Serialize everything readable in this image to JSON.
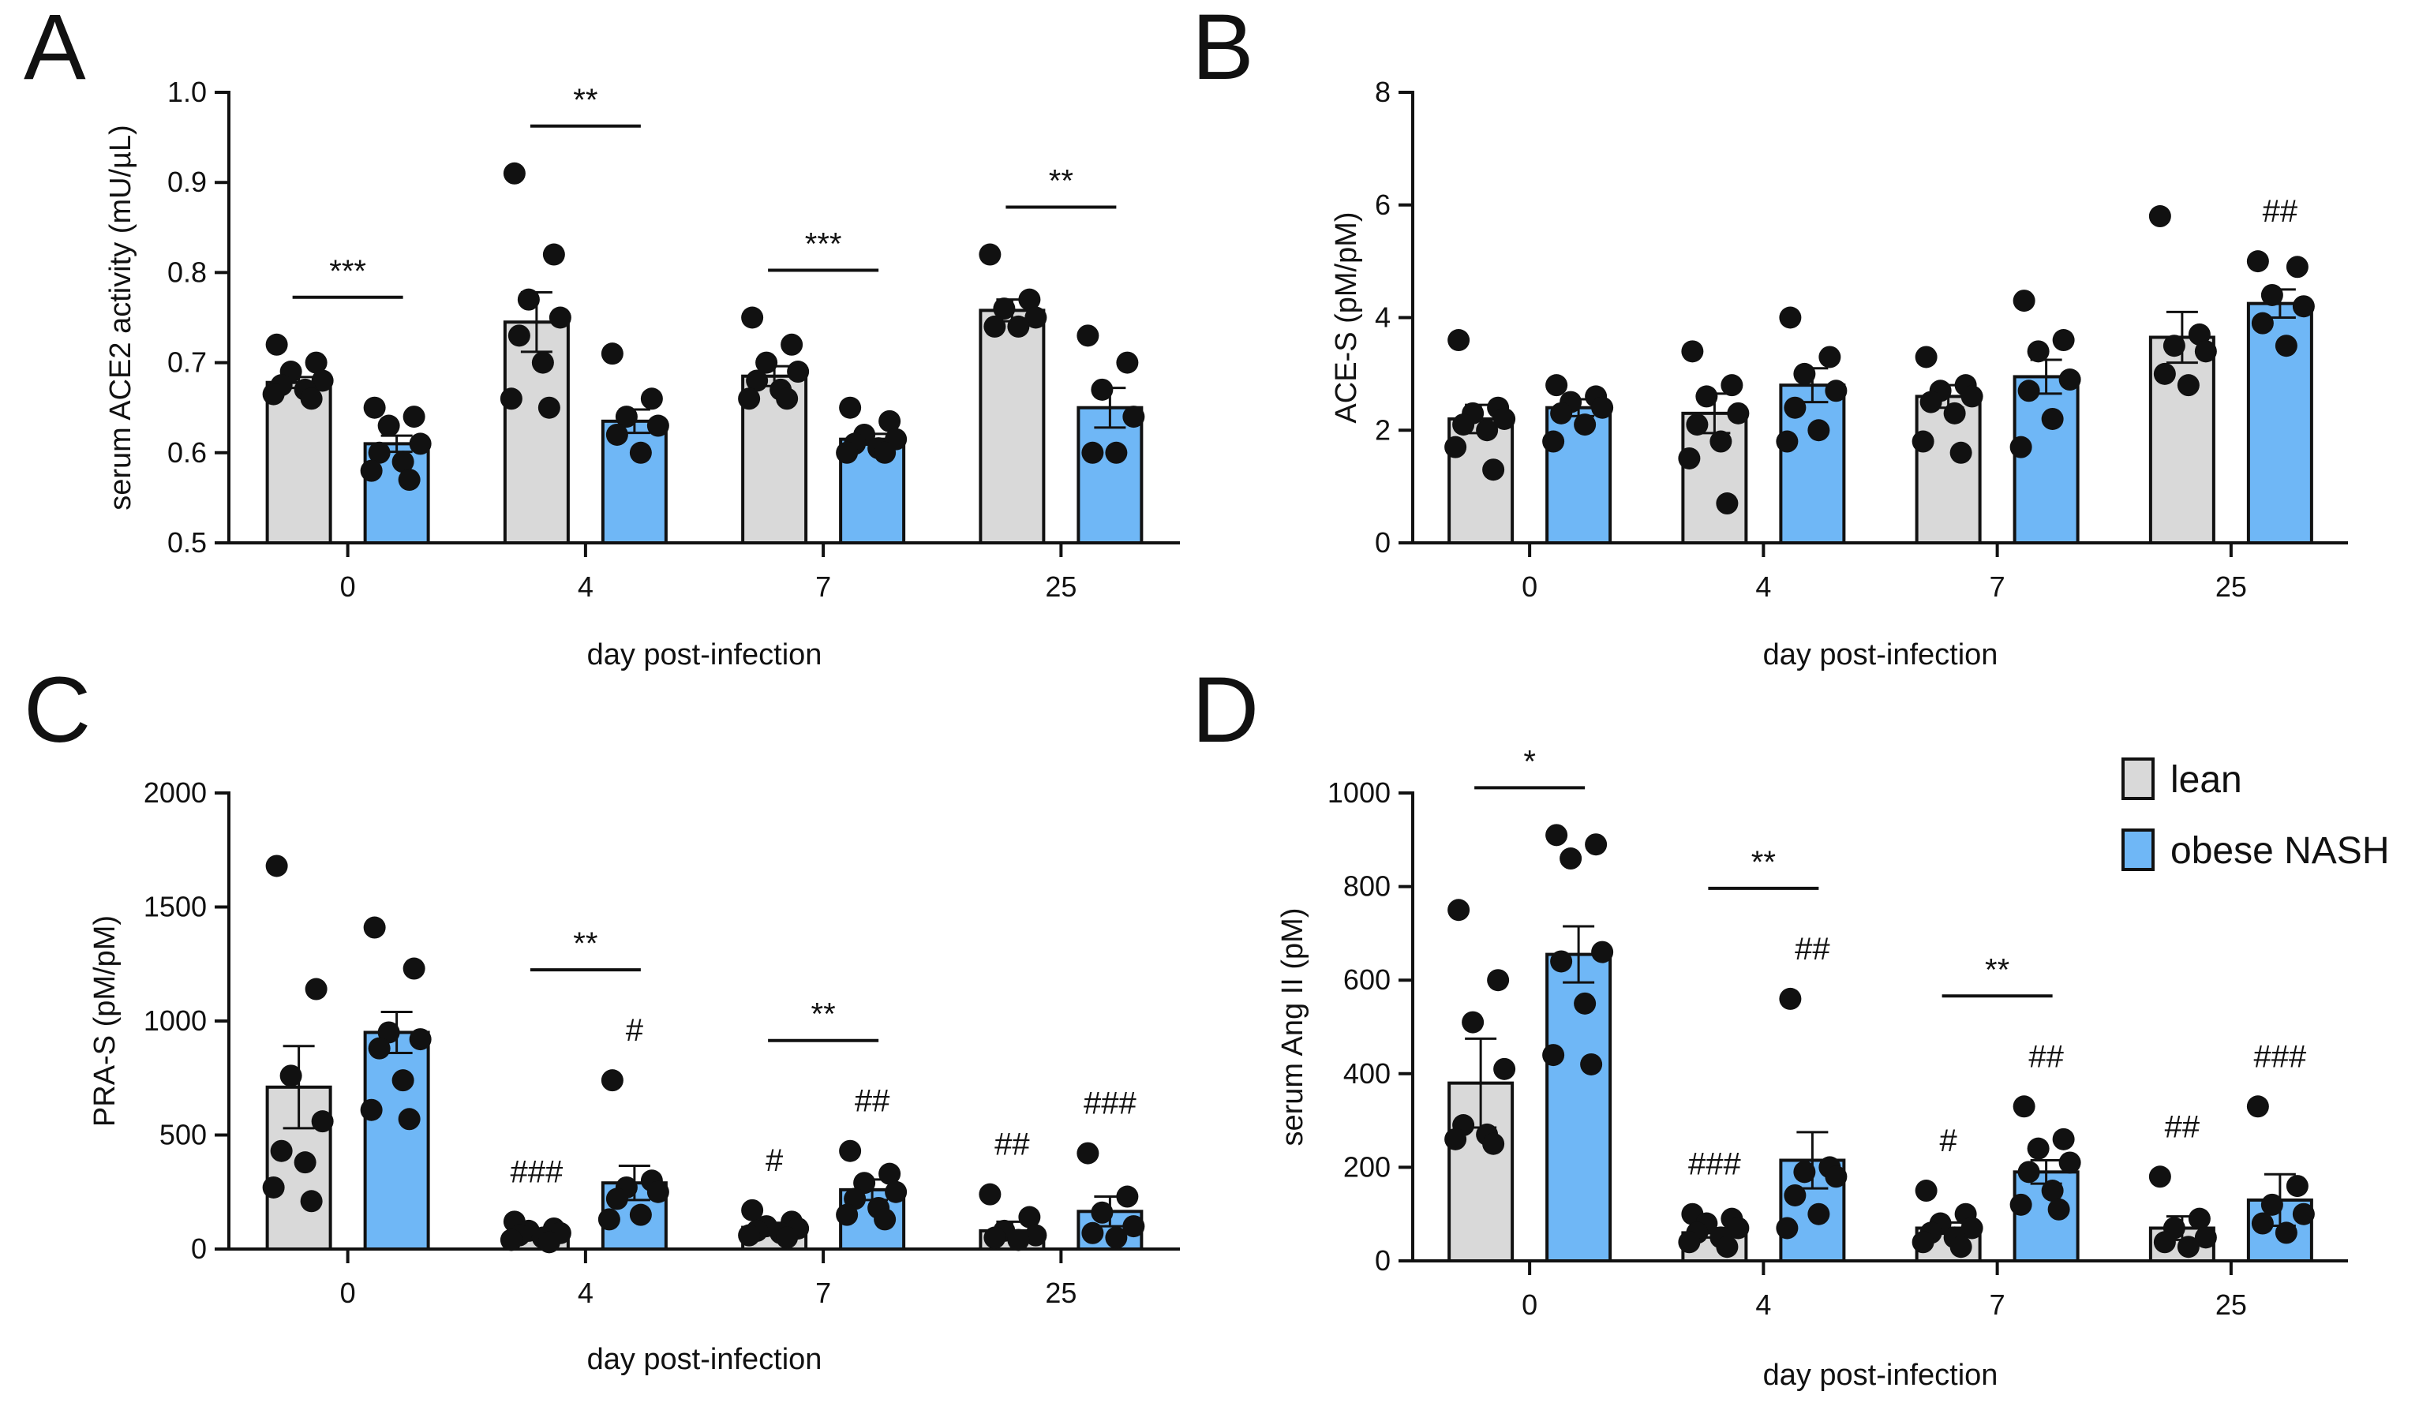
{
  "colors": {
    "lean": "#d9d9d9",
    "obese": "#6fb7f6",
    "ink": "#111111"
  },
  "legend": {
    "items": [
      {
        "label": "lean",
        "color": "#d9d9d9"
      },
      {
        "label": "obese NASH",
        "color": "#6fb7f6"
      }
    ],
    "placement": "top-right of panel D"
  },
  "chart_data": [
    {
      "panel": "A",
      "type": "bar",
      "title": "",
      "xlabel": "day post-infection",
      "ylabel": "serum ACE2 activity (mU/µL)",
      "ylim": [
        0.5,
        1.0
      ],
      "yticks": [
        "0.5",
        "0.6",
        "0.7",
        "0.8",
        "0.9",
        "1.0"
      ],
      "categories": [
        "0",
        "4",
        "7",
        "25"
      ],
      "series": [
        {
          "name": "lean",
          "values": [
            0.678,
            0.745,
            0.685,
            0.758
          ],
          "sem": [
            0.006,
            0.033,
            0.011,
            0.012
          ],
          "points": [
            [
              0.72,
              0.7,
              0.69,
              0.68,
              0.675,
              0.67,
              0.665,
              0.66
            ],
            [
              0.91,
              0.82,
              0.77,
              0.75,
              0.73,
              0.7,
              0.66,
              0.65
            ],
            [
              0.75,
              0.72,
              0.7,
              0.69,
              0.68,
              0.67,
              0.66,
              0.66
            ],
            [
              0.82,
              0.77,
              0.76,
              0.75,
              0.74,
              0.74
            ]
          ]
        },
        {
          "name": "obese NASH",
          "values": [
            0.61,
            0.635,
            0.615,
            0.65
          ],
          "sem": [
            0.009,
            0.013,
            0.006,
            0.022
          ],
          "points": [
            [
              0.65,
              0.64,
              0.63,
              0.61,
              0.6,
              0.59,
              0.58,
              0.57
            ],
            [
              0.71,
              0.66,
              0.64,
              0.63,
              0.62,
              0.6
            ],
            [
              0.65,
              0.635,
              0.62,
              0.615,
              0.61,
              0.605,
              0.6,
              0.6
            ],
            [
              0.73,
              0.7,
              0.67,
              0.64,
              0.6,
              0.6
            ]
          ]
        }
      ],
      "significance": [
        {
          "category": "0",
          "label": "***"
        },
        {
          "category": "4",
          "label": "**"
        },
        {
          "category": "7",
          "label": "***"
        },
        {
          "category": "25",
          "label": "**"
        }
      ],
      "hash_marks": [
        {
          "category": "0",
          "label": ""
        }
      ]
    },
    {
      "panel": "B",
      "type": "bar",
      "title": "",
      "xlabel": "day post-infection",
      "ylabel": "ACE-S (pM/pM)",
      "ylim": [
        0,
        8
      ],
      "yticks": [
        "0",
        "2",
        "4",
        "6",
        "8"
      ],
      "categories": [
        "0",
        "4",
        "7",
        "25"
      ],
      "series": [
        {
          "name": "lean",
          "values": [
            2.2,
            2.3,
            2.6,
            3.65
          ],
          "sem": [
            0.25,
            0.35,
            0.2,
            0.45
          ],
          "points": [
            [
              3.6,
              2.4,
              2.3,
              2.2,
              2.1,
              2.0,
              1.7,
              1.3
            ],
            [
              3.4,
              2.8,
              2.6,
              2.3,
              2.1,
              1.8,
              1.5,
              0.7
            ],
            [
              3.3,
              2.8,
              2.7,
              2.6,
              2.5,
              2.3,
              1.8,
              1.6
            ],
            [
              5.8,
              3.7,
              3.5,
              3.4,
              3.0,
              2.8
            ]
          ]
        },
        {
          "name": "obese NASH",
          "values": [
            2.4,
            2.8,
            2.95,
            4.25
          ],
          "sem": [
            0.15,
            0.3,
            0.3,
            0.25
          ],
          "points": [
            [
              2.8,
              2.6,
              2.5,
              2.4,
              2.3,
              2.1,
              1.8
            ],
            [
              4.0,
              3.3,
              3.0,
              2.7,
              2.4,
              2.0,
              1.8
            ],
            [
              4.3,
              3.6,
              3.4,
              2.9,
              2.7,
              2.2,
              1.7
            ],
            [
              5.0,
              4.9,
              4.4,
              4.2,
              3.9,
              3.5
            ]
          ]
        }
      ],
      "significance": [],
      "hash_marks": [
        {
          "category": "25",
          "label": "##"
        }
      ]
    },
    {
      "panel": "C",
      "type": "bar",
      "title": "",
      "xlabel": "day post-infection",
      "ylabel": "PRA-S (pM/pM)",
      "ylim": [
        0,
        2000
      ],
      "yticks": [
        "0",
        "500",
        "1000",
        "1500",
        "2000"
      ],
      "categories": [
        "0",
        "4",
        "7",
        "25"
      ],
      "series": [
        {
          "name": "lean",
          "values": [
            710,
            65,
            95,
            80
          ],
          "sem": [
            180,
            15,
            20,
            40
          ],
          "points": [
            [
              1680,
              1140,
              760,
              560,
              430,
              380,
              270,
              210
            ],
            [
              120,
              90,
              80,
              70,
              60,
              50,
              40,
              30
            ],
            [
              170,
              120,
              100,
              90,
              80,
              70,
              60,
              50
            ],
            [
              240,
              140,
              80,
              60,
              50,
              40
            ]
          ]
        },
        {
          "name": "obese NASH",
          "values": [
            950,
            290,
            260,
            165
          ],
          "sem": [
            90,
            75,
            45,
            65
          ],
          "points": [
            [
              1410,
              1230,
              950,
              920,
              880,
              740,
              610,
              570
            ],
            [
              740,
              300,
              270,
              250,
              220,
              150,
              130
            ],
            [
              430,
              330,
              290,
              250,
              220,
              180,
              150,
              130
            ],
            [
              420,
              230,
              160,
              100,
              70,
              50
            ]
          ]
        }
      ],
      "significance": [
        {
          "category": "4",
          "label": "**"
        },
        {
          "category": "7",
          "label": "**"
        }
      ],
      "hash_marks": [
        {
          "category": "4",
          "series": "lean",
          "label": "###"
        },
        {
          "category": "4",
          "series": "obese NASH",
          "label": "#"
        },
        {
          "category": "7",
          "series": "lean",
          "label": "#"
        },
        {
          "category": "7",
          "series": "obese NASH",
          "label": "##"
        },
        {
          "category": "25",
          "series": "lean",
          "label": "##"
        },
        {
          "category": "25",
          "series": "obese NASH",
          "label": "###"
        }
      ]
    },
    {
      "panel": "D",
      "type": "bar",
      "title": "",
      "xlabel": "day post-infection",
      "ylabel": "serum Ang II (pM)",
      "ylim": [
        0,
        1000
      ],
      "yticks": [
        "0",
        "200",
        "400",
        "600",
        "800",
        "1000"
      ],
      "categories": [
        "0",
        "4",
        "7",
        "25"
      ],
      "series": [
        {
          "name": "lean",
          "values": [
            380,
            60,
            70,
            70
          ],
          "sem": [
            95,
            10,
            12,
            25
          ],
          "points": [
            [
              750,
              600,
              510,
              410,
              290,
              270,
              260,
              250
            ],
            [
              100,
              90,
              80,
              70,
              60,
              50,
              40,
              30
            ],
            [
              150,
              100,
              80,
              70,
              60,
              50,
              40,
              30
            ],
            [
              180,
              90,
              70,
              50,
              40,
              30
            ]
          ]
        },
        {
          "name": "obese NASH",
          "values": [
            655,
            215,
            190,
            130
          ],
          "sem": [
            60,
            60,
            25,
            55
          ],
          "points": [
            [
              910,
              890,
              860,
              660,
              640,
              550,
              440,
              420
            ],
            [
              560,
              200,
              190,
              180,
              140,
              100,
              70
            ],
            [
              330,
              260,
              240,
              210,
              190,
              150,
              120,
              110
            ],
            [
              330,
              160,
              120,
              100,
              80,
              60
            ]
          ]
        }
      ],
      "significance": [
        {
          "category": "0",
          "label": "*"
        },
        {
          "category": "4",
          "label": "**"
        },
        {
          "category": "7",
          "label": "**"
        }
      ],
      "hash_marks": [
        {
          "category": "4",
          "series": "lean",
          "label": "###"
        },
        {
          "category": "4",
          "series": "obese NASH",
          "label": "##"
        },
        {
          "category": "7",
          "series": "lean",
          "label": "#"
        },
        {
          "category": "7",
          "series": "obese NASH",
          "label": "##"
        },
        {
          "category": "25",
          "series": "lean",
          "label": "##"
        },
        {
          "category": "25",
          "series": "obese NASH",
          "label": "###"
        }
      ]
    }
  ]
}
